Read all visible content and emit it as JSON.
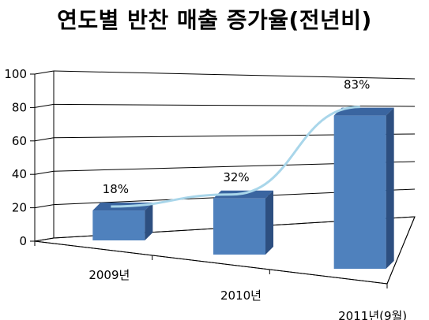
{
  "chart_data": {
    "type": "bar",
    "title": "연도별 반찬 매출 증가율(전년비)",
    "categories": [
      "2009년",
      "2010년",
      "2011년(9월)"
    ],
    "values": [
      18,
      32,
      83
    ],
    "data_labels": [
      "18%",
      "32%",
      "83%"
    ],
    "ylim": [
      0,
      100
    ],
    "yticks": [
      0,
      20,
      40,
      60,
      80,
      100
    ],
    "grid": true,
    "style": "3d-bar-with-line",
    "colors": {
      "bar_front": "#4F81BD",
      "bar_top": "#3A65A0",
      "bar_side": "#2D4F80",
      "line": "#A9D6EA",
      "grid": "#000000"
    }
  }
}
